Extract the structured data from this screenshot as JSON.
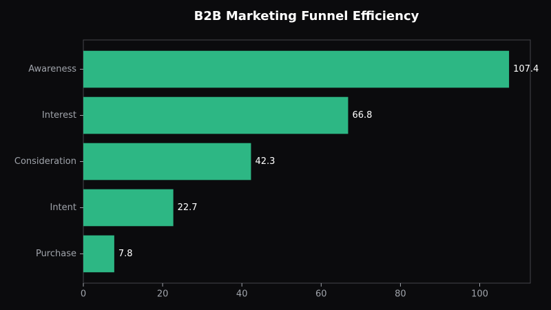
{
  "chart_data": {
    "type": "barh",
    "title": "B2B Marketing Funnel Efficiency",
    "categories": [
      "Awareness",
      "Interest",
      "Consideration",
      "Intent",
      "Purchase"
    ],
    "values": [
      107.4,
      66.8,
      42.3,
      22.7,
      7.8
    ],
    "color": "#2db784",
    "xlim": [
      0,
      112.77
    ],
    "xticks": [
      0,
      20,
      40,
      60,
      80,
      100
    ],
    "grid": false
  }
}
